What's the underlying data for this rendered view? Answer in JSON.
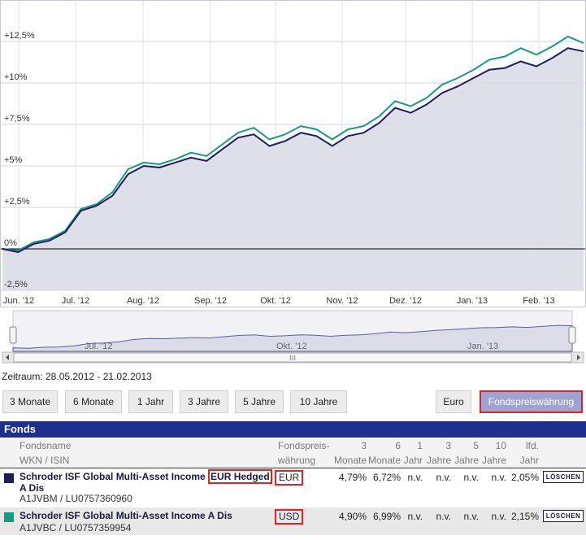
{
  "chart_data": {
    "type": "line",
    "x_ticks": [
      "Jun. '12",
      "Jul. '12",
      "Aug. '12",
      "Sep. '12",
      "Okt. '12",
      "Nov. '12",
      "Dez. '12",
      "Jan. '13",
      "Feb. '13"
    ],
    "y_ticks": [
      "+12,5%",
      "+10%",
      "+7,5%",
      "+5%",
      "+2,5%",
      "0%",
      "-2,5%"
    ],
    "ylim": [
      -3,
      15
    ],
    "grid": true,
    "series": [
      {
        "name": "Schroder ISF Global Multi-Asset Income EUR Hedged A Dis",
        "color": "#1c1f5c",
        "values": [
          0,
          -0.2,
          0.3,
          0.5,
          1.0,
          2.3,
          2.6,
          3.2,
          4.5,
          5.0,
          4.9,
          5.2,
          5.5,
          5.3,
          6.0,
          6.7,
          6.9,
          6.2,
          6.5,
          7.0,
          6.8,
          6.2,
          6.8,
          7.0,
          7.6,
          8.5,
          8.2,
          8.7,
          9.4,
          9.8,
          10.3,
          10.8,
          10.9,
          11.3,
          11.0,
          11.5,
          12.1,
          11.9
        ]
      },
      {
        "name": "Schroder ISF Global Multi-Asset Income A Dis",
        "color": "#1a9a82",
        "values": [
          0,
          -0.1,
          0.4,
          0.6,
          1.1,
          2.4,
          2.7,
          3.4,
          4.8,
          5.2,
          5.1,
          5.4,
          5.8,
          5.6,
          6.3,
          7.0,
          7.3,
          6.6,
          6.9,
          7.4,
          7.2,
          6.6,
          7.2,
          7.4,
          8.0,
          8.9,
          8.6,
          9.1,
          9.9,
          10.3,
          10.8,
          11.4,
          11.6,
          12.1,
          11.7,
          12.2,
          12.8,
          12.4
        ]
      }
    ]
  },
  "navigator": {
    "labels": [
      "Jul. '12",
      "Okt. '12",
      "Jan. '13"
    ]
  },
  "zeitraum": "Zeitraum: 28.05.2012 - 21.02.2013",
  "range_buttons": [
    "3 Monate",
    "6 Monate",
    "1 Jahr",
    "3 Jahre",
    "5 Jahre",
    "10 Jahre"
  ],
  "currency_buttons": [
    "Euro",
    "Fondspreiswährung"
  ],
  "table": {
    "title": "Fonds",
    "headers": {
      "name1": "Fondsname",
      "name2": "WKN / ISIN",
      "cur1": "Fondspreis-",
      "cur2": "währung",
      "m3a": "3",
      "m3b": "Monate",
      "m6a": "6",
      "m6b": "Monate",
      "j1a": "1",
      "j1b": "Jahr",
      "j3a": "3",
      "j3b": "Jahre",
      "j5a": "5",
      "j5b": "Jahre",
      "j10a": "10",
      "j10b": "Jahre",
      "lfda": "lfd.",
      "lfdb": "Jahr"
    },
    "rows": [
      {
        "name_pre": "Schroder ISF Global Multi-Asset Income ",
        "name_hl": "EUR Hedged",
        "name_post": " A Dis",
        "id": "A1JVBM / LU0757360960",
        "currency": "EUR",
        "m3": "4,79%",
        "m6": "6,72%",
        "j1": "n.v.",
        "j3": "n.v.",
        "j5": "n.v.",
        "j10": "n.v.",
        "lfd": "2,05%",
        "action": "LÖSCHEN",
        "swatch": "#1c1f5c"
      },
      {
        "name": "Schroder ISF Global Multi-Asset Income A Dis",
        "id": "A1JVBC / LU0757359954",
        "currency": "USD",
        "m3": "4,90%",
        "m6": "6,99%",
        "j1": "n.v.",
        "j3": "n.v.",
        "j5": "n.v.",
        "j10": "n.v.",
        "lfd": "2,15%",
        "action": "LÖSCHEN",
        "swatch": "#1a9a82"
      }
    ]
  }
}
